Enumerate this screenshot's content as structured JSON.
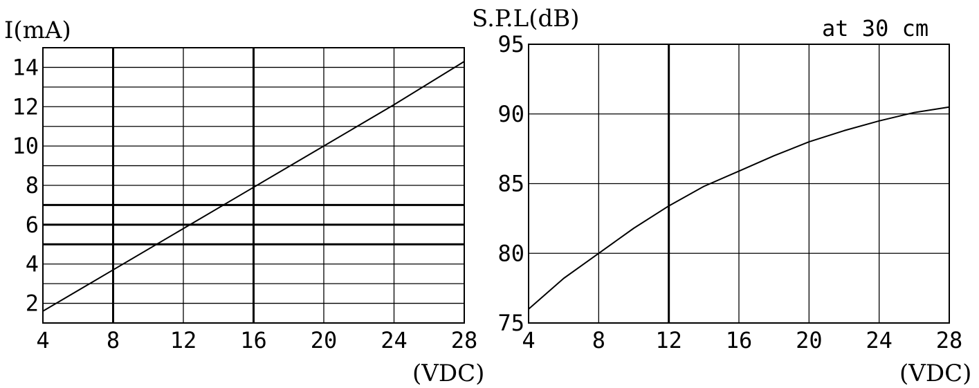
{
  "chart_data": [
    {
      "type": "line",
      "ylabel": "I(mA)",
      "xlabel": "(VDC)",
      "x_ticks": [
        "4",
        "8",
        "12",
        "16",
        "20",
        "24",
        "28"
      ],
      "y_ticks": [
        "2",
        "4",
        "6",
        "8",
        "10",
        "12",
        "14"
      ],
      "xlim": [
        4,
        28
      ],
      "ylim": [
        1,
        15
      ],
      "grid": true,
      "y_gridlines": [
        1,
        2,
        3,
        4,
        5,
        6,
        7,
        8,
        9,
        10,
        11,
        12,
        13,
        14,
        15
      ],
      "emphasized_y_lines": [
        5,
        6,
        7
      ],
      "emphasized_x_lines": [
        8,
        16
      ],
      "series": [
        {
          "x": [
            4,
            8,
            12,
            16,
            20,
            24,
            28
          ],
          "y": [
            1.6,
            3.7,
            5.8,
            7.9,
            10.0,
            12.1,
            14.3
          ]
        }
      ]
    },
    {
      "type": "line",
      "ylabel": "S.P.L(dB)",
      "xlabel": "(VDC)",
      "annotation": "at 30 cm",
      "x_ticks": [
        "4",
        "8",
        "12",
        "16",
        "20",
        "24",
        "28"
      ],
      "y_ticks": [
        "75",
        "80",
        "85",
        "90",
        "95"
      ],
      "xlim": [
        4,
        28
      ],
      "ylim": [
        75,
        95
      ],
      "grid": true,
      "emphasized_x_lines": [
        12
      ],
      "series": [
        {
          "x": [
            4,
            6,
            8,
            10,
            12,
            14,
            16,
            18,
            20,
            22,
            24,
            26,
            28
          ],
          "y": [
            76.0,
            78.2,
            80.0,
            81.8,
            83.4,
            84.8,
            85.9,
            87.0,
            88.0,
            88.8,
            89.5,
            90.1,
            90.5
          ]
        }
      ]
    }
  ]
}
